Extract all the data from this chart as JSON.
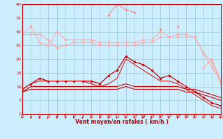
{
  "x": [
    0,
    1,
    2,
    3,
    4,
    5,
    6,
    7,
    8,
    9,
    10,
    11,
    12,
    13,
    14,
    15,
    16,
    17,
    18,
    19,
    20,
    21,
    22,
    23
  ],
  "series": [
    {
      "color": "#ffaaaa",
      "linewidth": 0.8,
      "marker": "D",
      "markersize": 1.8,
      "y": [
        29,
        32,
        26,
        25,
        30,
        27,
        27,
        27,
        27,
        26,
        26,
        26,
        26,
        26,
        27,
        27,
        30,
        28,
        29,
        29,
        28,
        22,
        17,
        12
      ]
    },
    {
      "color": "#ffaaaa",
      "linewidth": 0.8,
      "marker": "D",
      "markersize": 1.8,
      "y": [
        29,
        29,
        29,
        27,
        24,
        25,
        26,
        26,
        26,
        25,
        25,
        25,
        25,
        25,
        26,
        26,
        28,
        28,
        28,
        28,
        28,
        22,
        19,
        11
      ]
    },
    {
      "color": "#ff8888",
      "linewidth": 0.8,
      "marker": "D",
      "markersize": 1.8,
      "y": [
        null,
        null,
        null,
        null,
        null,
        null,
        null,
        null,
        null,
        null,
        36,
        40,
        38,
        37,
        null,
        null,
        31,
        null,
        32,
        null,
        null,
        null,
        null,
        null
      ]
    },
    {
      "color": "#ffaaaa",
      "linewidth": 0.8,
      "marker": "D",
      "markersize": 1.8,
      "y": [
        null,
        null,
        null,
        null,
        null,
        null,
        null,
        null,
        null,
        null,
        null,
        null,
        null,
        null,
        null,
        null,
        null,
        null,
        null,
        null,
        null,
        17,
        20,
        12
      ]
    },
    {
      "color": "#cc0000",
      "linewidth": 0.9,
      "marker": "D",
      "markersize": 1.8,
      "y": [
        9,
        11,
        13,
        12,
        12,
        12,
        12,
        12,
        12,
        11,
        14,
        16,
        21,
        19,
        18,
        16,
        13,
        14,
        12,
        10,
        8,
        6,
        4,
        3
      ]
    },
    {
      "color": "#dd2222",
      "linewidth": 0.8,
      "marker": null,
      "markersize": 0,
      "y": [
        9,
        11,
        12,
        12,
        12,
        12,
        12,
        12,
        11,
        10,
        11,
        13,
        20,
        18,
        16,
        14,
        12,
        12,
        11,
        9,
        7,
        5,
        3,
        2
      ]
    },
    {
      "color": "#cc0000",
      "linewidth": 0.8,
      "marker": null,
      "markersize": 0,
      "y": [
        8,
        10,
        10,
        10,
        10,
        10,
        10,
        10,
        10,
        10,
        10,
        10,
        11,
        10,
        10,
        10,
        10,
        10,
        10,
        9,
        9,
        8,
        7,
        6
      ]
    },
    {
      "color": "#cc0000",
      "linewidth": 0.8,
      "marker": null,
      "markersize": 0,
      "y": [
        8,
        9,
        9,
        9,
        9,
        9,
        9,
        9,
        9,
        9,
        9,
        9,
        10,
        9,
        9,
        9,
        9,
        9,
        9,
        8,
        8,
        7,
        6,
        5
      ]
    }
  ],
  "xlabel": "Vent moyen/en rafales ( km/h )",
  "xlim": [
    0,
    23
  ],
  "ylim": [
    0,
    40
  ],
  "yticks": [
    0,
    5,
    10,
    15,
    20,
    25,
    30,
    35,
    40
  ],
  "xticks": [
    0,
    1,
    2,
    3,
    4,
    5,
    6,
    7,
    8,
    9,
    10,
    11,
    12,
    13,
    14,
    15,
    16,
    17,
    18,
    19,
    20,
    21,
    22,
    23
  ],
  "background_color": "#cceeff",
  "grid_color": "#99cccc",
  "tick_color": "#cc0000",
  "label_color": "#cc0000"
}
